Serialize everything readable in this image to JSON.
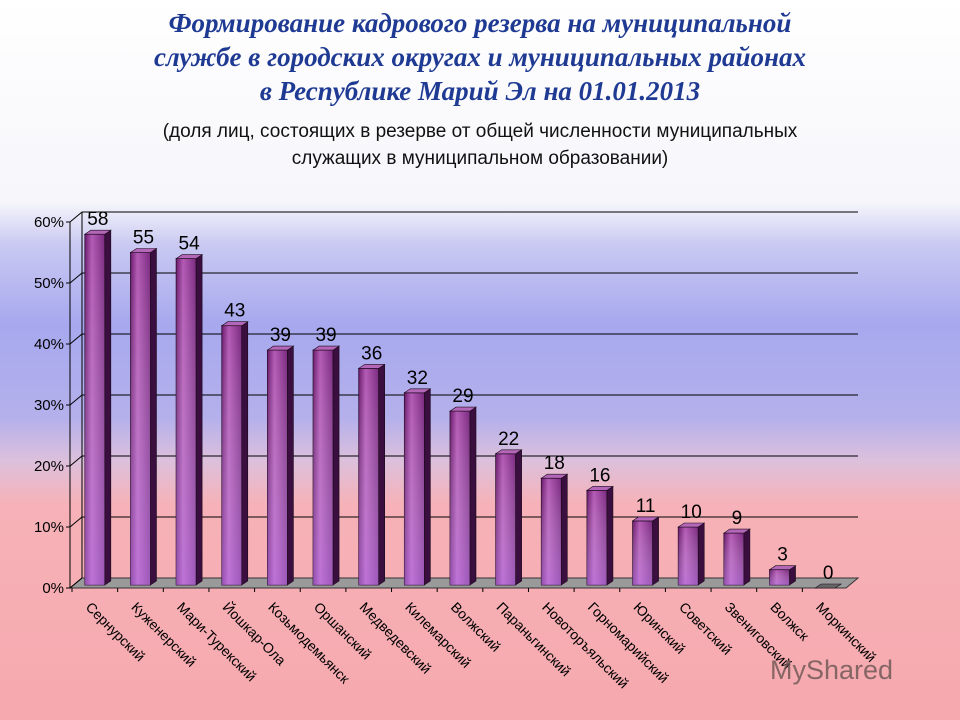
{
  "title_lines": [
    "Формирование кадрового резерва на муниципальной",
    "службе в городских округах и муниципальных районах",
    "в Республике Марий Эл на 01.01.2013"
  ],
  "subtitle_lines": [
    "(доля лиц, состоящих в резерве от общей численности муниципальных",
    "служащих в муниципальном образовании)"
  ],
  "watermark": "MyShared",
  "colors": {
    "bar_front": "#8a2a8a",
    "bar_side": "#3c1040",
    "bar_top": "#b050b0",
    "title": "#1f3a93"
  },
  "chart_data": {
    "type": "bar",
    "categories": [
      "Сернурский",
      "Куженерский",
      "Мари-Турекский",
      "Йошкар-Ола",
      "Козьмодемьянск",
      "Оршанский",
      "Медведевский",
      "Килемарский",
      "Волжский",
      "Параньгинский",
      "Новоторъяльский",
      "Горномарийский",
      "Юринский",
      "Советский",
      "Звениговский",
      "Волжск",
      "Моркинский"
    ],
    "values": [
      58,
      55,
      54,
      43,
      39,
      39,
      36,
      32,
      29,
      22,
      18,
      16,
      11,
      10,
      9,
      3,
      0
    ],
    "yticks": [
      "0%",
      "10%",
      "20%",
      "30%",
      "40%",
      "50%",
      "60%"
    ],
    "ylim": [
      0,
      60
    ],
    "grid": true,
    "style": "3d-column"
  }
}
